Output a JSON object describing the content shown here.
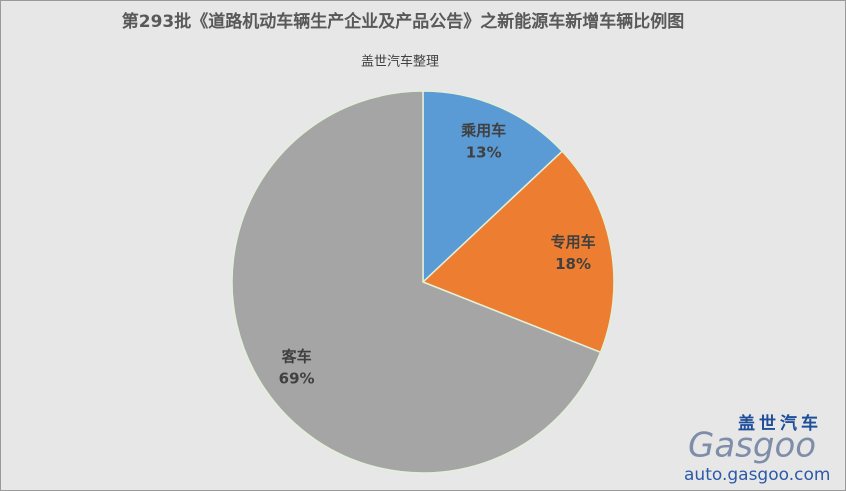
{
  "chart_data": {
    "type": "pie",
    "title": "第293批《道路机动车辆生产企业及产品公告》之新能源车新增车辆比例图",
    "subtitle": "盖世汽车整理",
    "categories": [
      "乘用车",
      "专用车",
      "客车"
    ],
    "values": [
      13,
      18,
      69
    ],
    "value_labels": [
      "13%",
      "18%",
      "69%"
    ],
    "colors": [
      "#5b9bd5",
      "#ed7d31",
      "#a5a5a5"
    ],
    "annotations": [
      "盖世汽车",
      "Gasgoo",
      "auto.gasgoo.com"
    ]
  }
}
